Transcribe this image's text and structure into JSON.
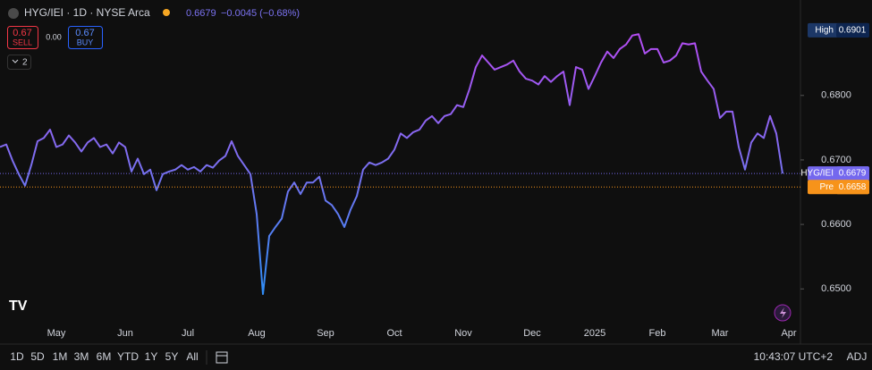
{
  "header": {
    "symbol": "HYG/IEI · 1D · NYSE Arca",
    "price": "0.6679",
    "change": "−0.0045 (−0.68%)",
    "sell_price": "0.67",
    "sell": "SELL",
    "spread": "0.00",
    "buy_price": "0.67",
    "buy": "BUY",
    "indicators": "2"
  },
  "chart_data": {
    "type": "line",
    "categories": [
      null,
      null,
      null,
      null,
      null,
      null,
      null,
      null,
      null,
      "May",
      null,
      null,
      null,
      null,
      null,
      null,
      null,
      null,
      null,
      null,
      "Jun",
      null,
      null,
      null,
      null,
      null,
      null,
      null,
      null,
      null,
      "Jul",
      null,
      null,
      null,
      null,
      null,
      null,
      null,
      null,
      null,
      null,
      "Aug",
      null,
      null,
      null,
      null,
      null,
      null,
      null,
      null,
      null,
      null,
      "Sep",
      null,
      null,
      null,
      null,
      null,
      null,
      null,
      null,
      null,
      null,
      "Oct",
      null,
      null,
      null,
      null,
      null,
      null,
      null,
      null,
      null,
      null,
      "Nov",
      null,
      null,
      null,
      null,
      null,
      null,
      null,
      null,
      null,
      null,
      "Dec",
      null,
      null,
      null,
      null,
      null,
      null,
      null,
      null,
      null,
      "2025",
      null,
      null,
      null,
      null,
      null,
      null,
      null,
      null,
      null,
      "Feb",
      null,
      null,
      null,
      null,
      null,
      null,
      null,
      null,
      null,
      "Mar",
      null,
      null,
      null,
      null,
      null,
      null,
      null,
      null,
      null,
      null,
      "Apr"
    ],
    "series": [
      {
        "name": "HYG/IEI",
        "colors": [
          "#2f8df5",
          "#7b6ff0",
          "#b44cf2"
        ],
        "values": [
          0.672,
          0.6724,
          0.6699,
          0.6678,
          0.666,
          0.6692,
          0.6729,
          0.6734,
          0.6747,
          0.672,
          0.6724,
          0.6738,
          0.6727,
          0.6713,
          0.6727,
          0.6734,
          0.672,
          0.6724,
          0.671,
          0.6727,
          0.672,
          0.6682,
          0.6702,
          0.6678,
          0.6685,
          0.6653,
          0.6678,
          0.6682,
          0.6685,
          0.6692,
          0.6685,
          0.6689,
          0.6682,
          0.6692,
          0.6688,
          0.6699,
          0.6706,
          0.6729,
          0.6706,
          0.6692,
          0.6678,
          0.6616,
          0.6492,
          0.6582,
          0.6596,
          0.6609,
          0.6651,
          0.6665,
          0.6647,
          0.6665,
          0.6665,
          0.6674,
          0.6637,
          0.663,
          0.6616,
          0.6596,
          0.6623,
          0.6644,
          0.6685,
          0.6696,
          0.6692,
          0.6696,
          0.6702,
          0.6716,
          0.6741,
          0.6734,
          0.6743,
          0.6747,
          0.6761,
          0.6768,
          0.6757,
          0.6768,
          0.6771,
          0.6785,
          0.6782,
          0.681,
          0.6844,
          0.6862,
          0.6851,
          0.684,
          0.6844,
          0.6848,
          0.6854,
          0.6837,
          0.6826,
          0.6823,
          0.6817,
          0.683,
          0.6821,
          0.683,
          0.6837,
          0.6785,
          0.6844,
          0.684,
          0.681,
          0.683,
          0.6851,
          0.6868,
          0.6858,
          0.6872,
          0.6879,
          0.6893,
          0.6895,
          0.6865,
          0.6872,
          0.6872,
          0.6851,
          0.6854,
          0.6862,
          0.6881,
          0.6879,
          0.6881,
          0.6837,
          0.6823,
          0.681,
          0.6765,
          0.6775,
          0.6775,
          0.672,
          0.6685,
          0.6727,
          0.6741,
          0.6734,
          0.6768,
          0.6741,
          0.6679,
          null
        ]
      }
    ],
    "ylim": [
      0.6456,
      0.6948
    ],
    "yticks": [
      {
        "value": 0.65,
        "label": "0.6500"
      },
      {
        "value": 0.66,
        "label": "0.6600"
      },
      {
        "value": 0.67,
        "label": "0.6700"
      },
      {
        "value": 0.68,
        "label": "0.6800"
      }
    ],
    "markers": [
      {
        "name": "High",
        "value": 0.6901,
        "label": "0.6901",
        "color": "#1c3766"
      },
      {
        "name": "HYG/IEI",
        "value": 0.6679,
        "label": "0.6679",
        "color": "#7468ee"
      },
      {
        "name": "Pre",
        "value": 0.6658,
        "label": "0.6658",
        "color": "#f7931a"
      }
    ]
  },
  "toolbar": {
    "ranges": [
      "1D",
      "5D",
      "1M",
      "3M",
      "6M",
      "YTD",
      "1Y",
      "5Y",
      "All"
    ],
    "time": "10:43:07 UTC+2",
    "adj": "ADJ"
  }
}
